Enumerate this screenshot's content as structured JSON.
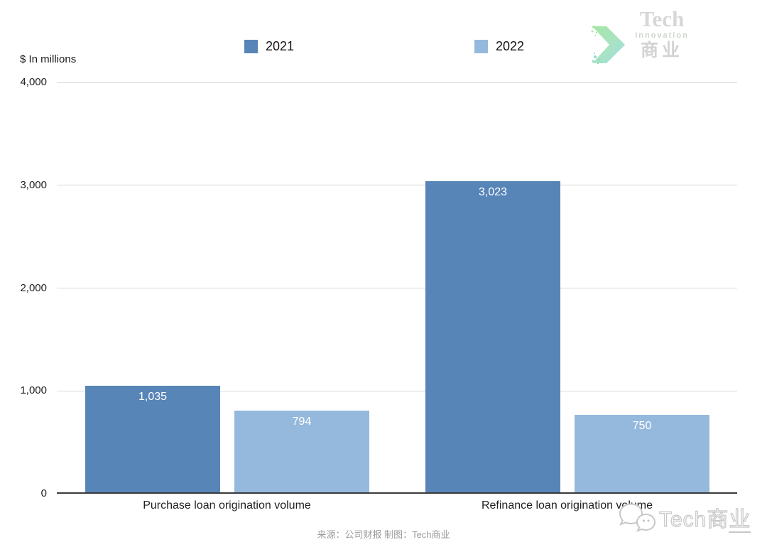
{
  "header": {
    "units_label": "$ In millions",
    "logo": {
      "line1": "Tech",
      "line2": "Innovation",
      "line3": "商业"
    }
  },
  "legend": [
    {
      "label": "2021",
      "color": "#5885b8"
    },
    {
      "label": "2022",
      "color": "#95b9dc"
    }
  ],
  "chart_data": {
    "type": "bar",
    "categories": [
      "Purchase loan origination volume",
      "Refinance loan origination volume"
    ],
    "series": [
      {
        "name": "2021",
        "color": "#5885b8",
        "values": [
          1035,
          3023
        ],
        "value_labels": [
          "1,035",
          "3,023"
        ]
      },
      {
        "name": "2022",
        "color": "#95b9dc",
        "values": [
          794,
          750
        ],
        "value_labels": [
          "794",
          "750"
        ]
      }
    ],
    "title": "",
    "xlabel": "",
    "ylabel": "$ In millions",
    "ylim": [
      0,
      4000
    ],
    "yticks": [
      0,
      1000,
      2000,
      3000,
      4000
    ],
    "ytick_labels": [
      "0",
      "1,000",
      "2,000",
      "3,000",
      "4,000"
    ],
    "grid": true,
    "legend_position": "top",
    "value_label_color": "#ffffff",
    "gridline_color": "#d9d9d9",
    "axis_color": "#3a3a3a"
  },
  "footer": {
    "source_text": "来源：公司财报 制图：Tech商业"
  },
  "watermark": {
    "text_main": "Tech商",
    "text_tail": "业"
  }
}
